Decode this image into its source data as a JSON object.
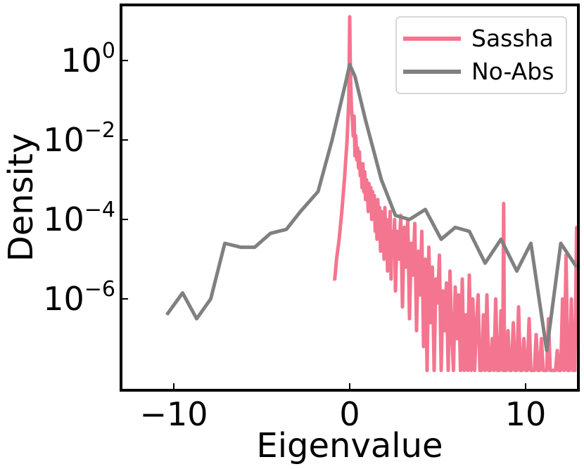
{
  "chart_data": {
    "type": "line",
    "xlabel": "Eigenvalue",
    "ylabel": "Density",
    "xlim": [
      -13,
      13
    ],
    "ylim_log10": [
      -8.3,
      1.4
    ],
    "x_scale": "linear",
    "y_scale": "log",
    "grid": false,
    "legend_position": "top-right",
    "x_ticks": [
      {
        "value": -10,
        "label": "−10"
      },
      {
        "value": 0,
        "label": "0"
      },
      {
        "value": 10,
        "label": "10"
      }
    ],
    "y_ticks": [
      {
        "exp": 0,
        "base": "10",
        "sup": "0"
      },
      {
        "exp": -2,
        "base": "10",
        "sup": "−2"
      },
      {
        "exp": -4,
        "base": "10",
        "sup": "−4"
      },
      {
        "exp": -6,
        "base": "10",
        "sup": "−6"
      }
    ],
    "series": [
      {
        "name": "Sassha",
        "color": "#f4758f",
        "points": [
          [
            -0.95,
            -5.5
          ],
          [
            -0.85,
            -5.5
          ],
          [
            -0.75,
            -5.0
          ],
          [
            -0.6,
            -4.5
          ],
          [
            -0.45,
            -3.8
          ],
          [
            -0.3,
            -3.0
          ],
          [
            -0.15,
            -2.0
          ],
          [
            -0.05,
            -1.0
          ],
          [
            -0.02,
            0.2
          ],
          [
            0.0,
            1.1
          ],
          [
            0.02,
            0.3
          ],
          [
            0.05,
            -0.5
          ],
          [
            0.1,
            -1.2
          ],
          [
            0.15,
            -1.5
          ],
          [
            0.2,
            -1.9
          ],
          [
            0.25,
            -1.4
          ],
          [
            0.3,
            -2.4
          ],
          [
            0.35,
            -1.9
          ],
          [
            0.4,
            -2.5
          ],
          [
            0.45,
            -2.2
          ],
          [
            0.5,
            -2.7
          ],
          [
            0.55,
            -2.3
          ],
          [
            0.6,
            -2.9
          ],
          [
            0.65,
            -2.6
          ],
          [
            0.7,
            -3.2
          ],
          [
            0.75,
            -2.6
          ],
          [
            0.8,
            -3.3
          ],
          [
            0.85,
            -2.8
          ],
          [
            0.9,
            -3.5
          ],
          [
            0.95,
            -3.0
          ],
          [
            1.0,
            -3.1
          ],
          [
            1.05,
            -3.8
          ],
          [
            1.1,
            -3.1
          ],
          [
            1.15,
            -3.6
          ],
          [
            1.2,
            -3.2
          ],
          [
            1.25,
            -4.0
          ],
          [
            1.3,
            -3.3
          ],
          [
            1.35,
            -3.9
          ],
          [
            1.4,
            -3.4
          ],
          [
            1.45,
            -4.3
          ],
          [
            1.5,
            -3.6
          ],
          [
            1.55,
            -4.5
          ],
          [
            1.6,
            -3.5
          ],
          [
            1.65,
            -4.4
          ],
          [
            1.7,
            -3.7
          ],
          [
            1.75,
            -4.8
          ],
          [
            1.8,
            -3.8
          ],
          [
            1.85,
            -4.5
          ],
          [
            1.9,
            -3.9
          ],
          [
            1.95,
            -5.0
          ],
          [
            2.0,
            -3.7
          ],
          [
            2.05,
            -4.6
          ],
          [
            2.1,
            -4.0
          ],
          [
            2.15,
            -5.3
          ],
          [
            2.2,
            -4.1
          ],
          [
            2.25,
            -4.7
          ],
          [
            2.3,
            -3.8
          ],
          [
            2.35,
            -5.5
          ],
          [
            2.4,
            -4.3
          ],
          [
            2.5,
            -4.9
          ],
          [
            2.55,
            -4.0
          ],
          [
            2.6,
            -5.8
          ],
          [
            2.7,
            -4.3
          ],
          [
            2.8,
            -5.0
          ],
          [
            2.9,
            -3.9
          ],
          [
            3.0,
            -6.2
          ],
          [
            3.1,
            -4.2
          ],
          [
            3.2,
            -5.2
          ],
          [
            3.3,
            -4.0
          ],
          [
            3.4,
            -6.5
          ],
          [
            3.5,
            -4.6
          ],
          [
            3.6,
            -5.4
          ],
          [
            3.7,
            -4.1
          ],
          [
            3.8,
            -6.8
          ],
          [
            3.9,
            -4.8
          ],
          [
            4.0,
            -5.9
          ],
          [
            4.1,
            -4.3
          ],
          [
            4.2,
            -7.2
          ],
          [
            4.3,
            -5.0
          ],
          [
            4.4,
            -7.8
          ],
          [
            4.5,
            -4.7
          ],
          [
            4.6,
            -6.6
          ],
          [
            4.7,
            -5.2
          ],
          [
            4.8,
            -7.8
          ],
          [
            4.9,
            -5.5
          ],
          [
            5.0,
            -6.1
          ],
          [
            5.1,
            -4.9
          ],
          [
            5.2,
            -7.8
          ],
          [
            5.3,
            -5.8
          ],
          [
            5.4,
            -6.8
          ],
          [
            5.5,
            -5.6
          ],
          [
            5.6,
            -7.8
          ],
          [
            5.7,
            -5.3
          ],
          [
            5.8,
            -6.9
          ],
          [
            5.9,
            -7.8
          ],
          [
            6.0,
            -5.7
          ],
          [
            6.1,
            -7.0
          ],
          [
            6.2,
            -5.9
          ],
          [
            6.3,
            -7.8
          ],
          [
            6.4,
            -5.5
          ],
          [
            6.5,
            -7.8
          ],
          [
            6.6,
            -6.4
          ],
          [
            6.7,
            -7.8
          ],
          [
            6.8,
            -5.4
          ],
          [
            6.9,
            -7.8
          ],
          [
            7.0,
            -6.0
          ],
          [
            7.1,
            -7.8
          ],
          [
            7.2,
            -6.7
          ],
          [
            7.3,
            -5.9
          ],
          [
            7.4,
            -7.8
          ],
          [
            7.5,
            -7.8
          ],
          [
            7.6,
            -6.4
          ],
          [
            7.7,
            -7.8
          ],
          [
            7.8,
            -5.9
          ],
          [
            7.9,
            -7.8
          ],
          [
            8.0,
            -7.8
          ],
          [
            8.1,
            -7.0
          ],
          [
            8.2,
            -7.8
          ],
          [
            8.3,
            -6.0
          ],
          [
            8.4,
            -7.8
          ],
          [
            8.5,
            -7.8
          ],
          [
            8.6,
            -6.3
          ],
          [
            8.7,
            -7.8
          ],
          [
            8.75,
            -3.6
          ],
          [
            8.8,
            -7.8
          ],
          [
            8.9,
            -7.8
          ],
          [
            9.0,
            -6.8
          ],
          [
            9.1,
            -7.8
          ],
          [
            9.2,
            -7.8
          ],
          [
            9.3,
            -6.6
          ],
          [
            9.4,
            -7.8
          ],
          [
            9.5,
            -7.8
          ],
          [
            9.6,
            -6.2
          ],
          [
            9.7,
            -7.8
          ],
          [
            9.8,
            -7.8
          ],
          [
            9.9,
            -7.0
          ],
          [
            10.0,
            -7.8
          ],
          [
            10.1,
            -7.8
          ],
          [
            10.2,
            -6.5
          ],
          [
            10.3,
            -7.8
          ],
          [
            10.4,
            -7.8
          ],
          [
            10.5,
            -7.8
          ],
          [
            10.6,
            -6.9
          ],
          [
            10.7,
            -7.8
          ],
          [
            10.8,
            -7.8
          ],
          [
            10.9,
            -7.0
          ],
          [
            11.0,
            -7.8
          ],
          [
            11.1,
            -7.8
          ],
          [
            11.2,
            -7.8
          ],
          [
            11.3,
            -6.5
          ],
          [
            11.4,
            -7.8
          ],
          [
            11.5,
            -7.8
          ],
          [
            11.6,
            -7.8
          ],
          [
            11.7,
            -7.8
          ],
          [
            11.8,
            -7.3
          ],
          [
            11.9,
            -7.8
          ],
          [
            12.0,
            -7.8
          ],
          [
            12.1,
            -6.0
          ],
          [
            12.2,
            -7.8
          ],
          [
            12.3,
            -4.9
          ],
          [
            12.4,
            -7.8
          ],
          [
            12.5,
            -7.8
          ],
          [
            12.6,
            -6.0
          ],
          [
            12.7,
            -7.8
          ],
          [
            12.8,
            -7.8
          ],
          [
            12.9,
            -4.2
          ],
          [
            13.0,
            -5.0
          ]
        ]
      },
      {
        "name": "No-Abs",
        "color": "#808080",
        "points": [
          [
            -10.4,
            -6.4
          ],
          [
            -9.5,
            -5.85
          ],
          [
            -8.7,
            -6.5
          ],
          [
            -7.9,
            -6.0
          ],
          [
            -7.1,
            -4.6
          ],
          [
            -6.2,
            -4.7
          ],
          [
            -5.4,
            -4.7
          ],
          [
            -4.5,
            -4.35
          ],
          [
            -3.6,
            -4.25
          ],
          [
            -2.8,
            -3.8
          ],
          [
            -1.8,
            -3.3
          ],
          [
            -1.0,
            -2.0
          ],
          [
            -0.2,
            -0.5
          ],
          [
            0.0,
            -0.1
          ],
          [
            0.3,
            -0.4
          ],
          [
            0.9,
            -1.5
          ],
          [
            1.8,
            -3.0
          ],
          [
            2.6,
            -3.9
          ],
          [
            3.4,
            -4.0
          ],
          [
            4.3,
            -3.75
          ],
          [
            5.2,
            -4.5
          ],
          [
            6.0,
            -4.2
          ],
          [
            6.8,
            -4.3
          ],
          [
            7.7,
            -5.1
          ],
          [
            8.6,
            -4.5
          ],
          [
            9.5,
            -5.3
          ],
          [
            10.3,
            -4.6
          ],
          [
            11.2,
            -7.3
          ],
          [
            12.0,
            -4.6
          ],
          [
            12.9,
            -5.2
          ]
        ]
      }
    ]
  }
}
